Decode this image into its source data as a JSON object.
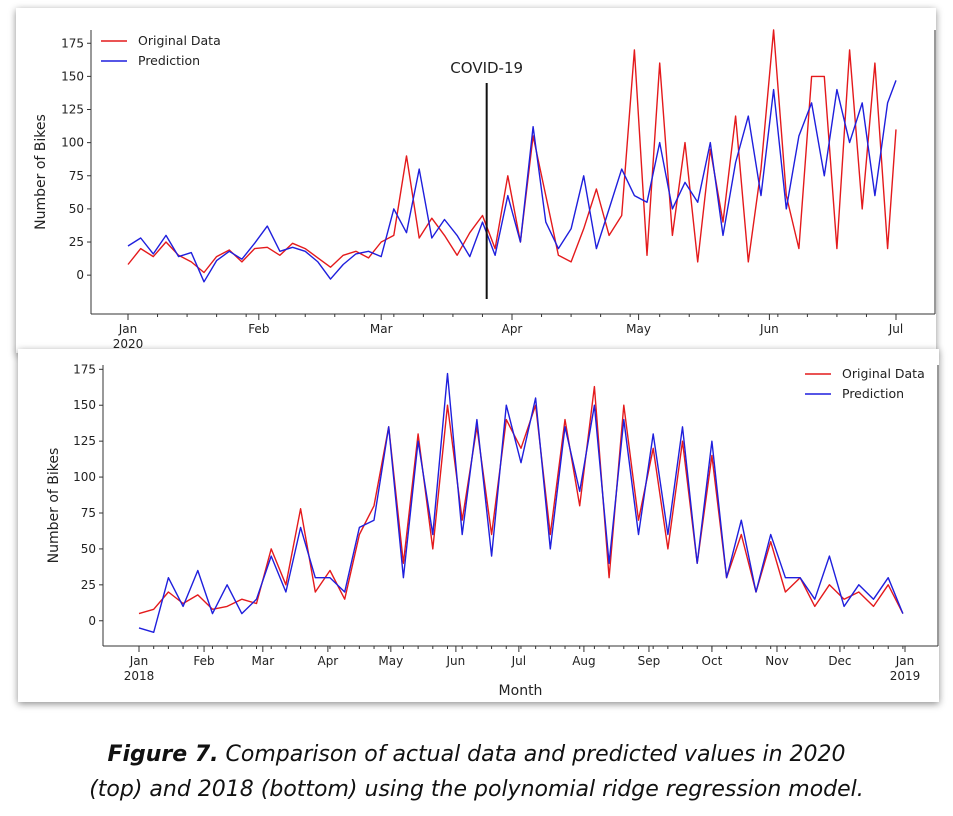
{
  "caption": {
    "label": "Figure 7.",
    "line1": "Comparison of actual data and predicted values in 2020",
    "line2": "(top) and 2018 (bottom) using the polynomial ridge regression model."
  },
  "chart_data": [
    {
      "type": "line",
      "xlabel": "",
      "ylabel": "Number of Bikes",
      "ylim": [
        -18,
        185
      ],
      "yticks": [
        0,
        25,
        50,
        75,
        100,
        125,
        150,
        175
      ],
      "xticks": [
        "Jan\n2020",
        "Feb",
        "Mar",
        "Apr",
        "May",
        "Jun",
        "Jul"
      ],
      "xrange": [
        "2020-01-01",
        "2020-07-01"
      ],
      "legend": "top-left",
      "annotation": {
        "text": "COVID-19",
        "x": "2020-03-26"
      },
      "x": [
        "2020-01-01",
        "2020-01-04",
        "2020-01-07",
        "2020-01-10",
        "2020-01-13",
        "2020-01-16",
        "2020-01-19",
        "2020-01-22",
        "2020-01-25",
        "2020-01-28",
        "2020-01-31",
        "2020-02-03",
        "2020-02-06",
        "2020-02-09",
        "2020-02-12",
        "2020-02-15",
        "2020-02-18",
        "2020-02-21",
        "2020-02-24",
        "2020-02-27",
        "2020-03-01",
        "2020-03-04",
        "2020-03-07",
        "2020-03-10",
        "2020-03-13",
        "2020-03-16",
        "2020-03-19",
        "2020-03-22",
        "2020-03-25",
        "2020-03-28",
        "2020-03-31",
        "2020-04-03",
        "2020-04-06",
        "2020-04-09",
        "2020-04-12",
        "2020-04-15",
        "2020-04-18",
        "2020-04-21",
        "2020-04-24",
        "2020-04-27",
        "2020-04-30",
        "2020-05-03",
        "2020-05-06",
        "2020-05-09",
        "2020-05-12",
        "2020-05-15",
        "2020-05-18",
        "2020-05-21",
        "2020-05-24",
        "2020-05-27",
        "2020-05-30",
        "2020-06-02",
        "2020-06-05",
        "2020-06-08",
        "2020-06-11",
        "2020-06-14",
        "2020-06-17",
        "2020-06-20",
        "2020-06-23",
        "2020-06-26",
        "2020-06-29",
        "2020-07-01"
      ],
      "series": [
        {
          "name": "Original Data",
          "color": "#e41a1c",
          "values": [
            8,
            20,
            14,
            25,
            15,
            10,
            2,
            14,
            19,
            10,
            20,
            21,
            15,
            24,
            20,
            13,
            6,
            15,
            18,
            13,
            25,
            30,
            90,
            28,
            43,
            30,
            15,
            32,
            45,
            20,
            75,
            25,
            105,
            60,
            15,
            10,
            35,
            65,
            30,
            45,
            170,
            15,
            160,
            30,
            100,
            10,
            95,
            40,
            120,
            10,
            80,
            185,
            60,
            20,
            150,
            150,
            20,
            170,
            50,
            160,
            20,
            110
          ]
        },
        {
          "name": "Prediction",
          "color": "#1f1fdd",
          "values": [
            22,
            28,
            16,
            30,
            14,
            17,
            -5,
            11,
            18,
            12,
            24,
            37,
            18,
            21,
            18,
            10,
            -3,
            8,
            16,
            18,
            14,
            50,
            32,
            80,
            28,
            42,
            30,
            14,
            40,
            15,
            60,
            25,
            112,
            40,
            20,
            35,
            75,
            20,
            50,
            80,
            60,
            55,
            100,
            50,
            70,
            55,
            100,
            30,
            85,
            120,
            60,
            140,
            50,
            105,
            130,
            75,
            140,
            100,
            130,
            60,
            130,
            147
          ]
        }
      ]
    },
    {
      "type": "line",
      "xlabel": "Month",
      "ylabel": "Number of Bikes",
      "ylim": [
        -12,
        178
      ],
      "yticks": [
        0,
        25,
        50,
        75,
        100,
        125,
        150,
        175
      ],
      "xticks": [
        "Jan\n2018",
        "Feb",
        "Mar",
        "Apr",
        "May",
        "Jun",
        "Jul",
        "Aug",
        "Sep",
        "Oct",
        "Nov",
        "Dec",
        "Jan\n2019"
      ],
      "xrange": [
        "2018-01-01",
        "2019-01-01"
      ],
      "legend": "top-right",
      "x": [
        "2018-01-01",
        "2018-01-08",
        "2018-01-15",
        "2018-01-22",
        "2018-01-29",
        "2018-02-05",
        "2018-02-12",
        "2018-02-19",
        "2018-02-26",
        "2018-03-05",
        "2018-03-12",
        "2018-03-19",
        "2018-03-26",
        "2018-04-02",
        "2018-04-09",
        "2018-04-16",
        "2018-04-23",
        "2018-04-30",
        "2018-05-07",
        "2018-05-14",
        "2018-05-21",
        "2018-05-28",
        "2018-06-04",
        "2018-06-11",
        "2018-06-18",
        "2018-06-25",
        "2018-07-02",
        "2018-07-09",
        "2018-07-16",
        "2018-07-23",
        "2018-07-30",
        "2018-08-06",
        "2018-08-13",
        "2018-08-20",
        "2018-08-27",
        "2018-09-03",
        "2018-09-10",
        "2018-09-17",
        "2018-09-24",
        "2018-10-01",
        "2018-10-08",
        "2018-10-15",
        "2018-10-22",
        "2018-10-29",
        "2018-11-05",
        "2018-11-12",
        "2018-11-19",
        "2018-11-26",
        "2018-12-03",
        "2018-12-10",
        "2018-12-17",
        "2018-12-24",
        "2018-12-31"
      ],
      "series": [
        {
          "name": "Original Data",
          "color": "#e41a1c",
          "values": [
            5,
            8,
            20,
            12,
            18,
            8,
            10,
            15,
            12,
            50,
            25,
            78,
            20,
            35,
            15,
            60,
            80,
            135,
            40,
            130,
            50,
            150,
            70,
            135,
            60,
            140,
            120,
            150,
            60,
            140,
            80,
            163,
            30,
            150,
            70,
            120,
            50,
            125,
            40,
            115,
            30,
            60,
            20,
            55,
            20,
            30,
            10,
            25,
            15,
            20,
            10,
            25,
            5
          ]
        },
        {
          "name": "Prediction",
          "color": "#1f1fdd",
          "values": [
            -5,
            -8,
            30,
            10,
            35,
            5,
            25,
            5,
            15,
            45,
            20,
            65,
            30,
            30,
            20,
            65,
            70,
            135,
            30,
            125,
            60,
            172,
            60,
            140,
            45,
            150,
            110,
            155,
            50,
            135,
            90,
            150,
            40,
            140,
            60,
            130,
            60,
            135,
            40,
            125,
            30,
            70,
            20,
            60,
            30,
            30,
            15,
            45,
            10,
            25,
            15,
            30,
            5
          ]
        }
      ]
    }
  ]
}
